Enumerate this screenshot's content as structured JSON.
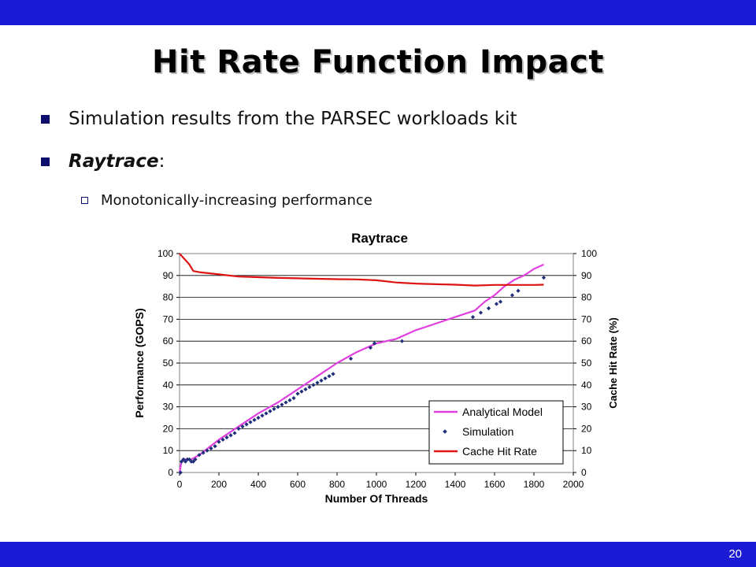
{
  "slide": {
    "title": "Hit Rate Function Impact",
    "bullets": [
      {
        "text": "Simulation results from the PARSEC workloads kit"
      },
      {
        "emph": "Raytrace",
        "rest": ":"
      },
      {
        "text": "Monotonically-increasing performance"
      }
    ],
    "page_number": "20",
    "bar_color": "#1b1bd6"
  },
  "chart_data": {
    "type": "line",
    "title": "Raytrace",
    "xlabel": "Number Of Threads",
    "ylabel": "Performance (GOPS)",
    "y2label": "Cache Hit Rate (%)",
    "xlim": [
      0,
      2000
    ],
    "ylim": [
      0,
      100
    ],
    "y2lim": [
      0,
      100
    ],
    "xticks": [
      "0",
      "200",
      "400",
      "600",
      "800",
      "1000",
      "1200",
      "1400",
      "1600",
      "1800",
      "2000"
    ],
    "yticks": [
      "0",
      "10",
      "20",
      "30",
      "40",
      "50",
      "60",
      "70",
      "80",
      "90",
      "100"
    ],
    "y2ticks": [
      "0",
      "10",
      "20",
      "30",
      "40",
      "50",
      "60",
      "70",
      "80",
      "90",
      "100"
    ],
    "grid": "horizontal",
    "legend_position": "bottom-right",
    "series": [
      {
        "name": "Analytical Model",
        "color": "#e040e0",
        "x": [
          0,
          10,
          20,
          40,
          60,
          100,
          200,
          300,
          400,
          500,
          600,
          700,
          800,
          900,
          1000,
          1100,
          1200,
          1300,
          1400,
          1500,
          1550,
          1600,
          1650,
          1700,
          1750,
          1800,
          1850
        ],
        "y": [
          0,
          5,
          6,
          6,
          6,
          8,
          15,
          21,
          27,
          32,
          38,
          44,
          50,
          55,
          59,
          61,
          65,
          68,
          71,
          74,
          78,
          81,
          85,
          88,
          90,
          93,
          95
        ]
      },
      {
        "name": "Simulation",
        "color": "#1f2f7a",
        "marker": "diamond",
        "x": [
          5,
          10,
          20,
          30,
          40,
          50,
          60,
          70,
          80,
          100,
          120,
          140,
          160,
          180,
          200,
          220,
          240,
          260,
          280,
          300,
          320,
          340,
          360,
          380,
          400,
          420,
          440,
          460,
          480,
          500,
          520,
          540,
          560,
          580,
          600,
          620,
          640,
          660,
          680,
          700,
          720,
          740,
          760,
          780,
          870,
          970,
          990,
          1130,
          1490,
          1530,
          1570,
          1610,
          1630,
          1690,
          1720,
          1850
        ],
        "y": [
          0,
          5,
          6,
          5,
          6,
          6,
          5,
          5,
          6,
          8,
          9,
          10,
          11,
          12,
          14,
          15,
          16,
          17,
          18,
          20,
          21,
          22,
          23,
          24,
          25,
          26,
          27,
          28,
          29,
          30,
          31,
          32,
          33,
          34,
          36,
          37,
          38,
          39,
          40,
          41,
          42,
          43,
          44,
          45,
          52,
          57,
          59,
          60,
          71,
          73,
          75,
          77,
          78,
          81,
          83,
          89
        ]
      },
      {
        "name": "Cache Hit Rate",
        "color": "#dc1414",
        "axis": "right",
        "x": [
          0,
          10,
          30,
          50,
          70,
          100,
          200,
          300,
          400,
          500,
          600,
          700,
          800,
          900,
          1000,
          1100,
          1200,
          1300,
          1400,
          1500,
          1600,
          1700,
          1800,
          1850
        ],
        "y": [
          100,
          99,
          97,
          95,
          92,
          91.5,
          90.5,
          89.5,
          89.2,
          88.9,
          88.7,
          88.5,
          88.3,
          88.2,
          87.8,
          86.8,
          86.3,
          86,
          85.8,
          85.4,
          85.7,
          85.7,
          85.7,
          85.8
        ]
      }
    ]
  }
}
